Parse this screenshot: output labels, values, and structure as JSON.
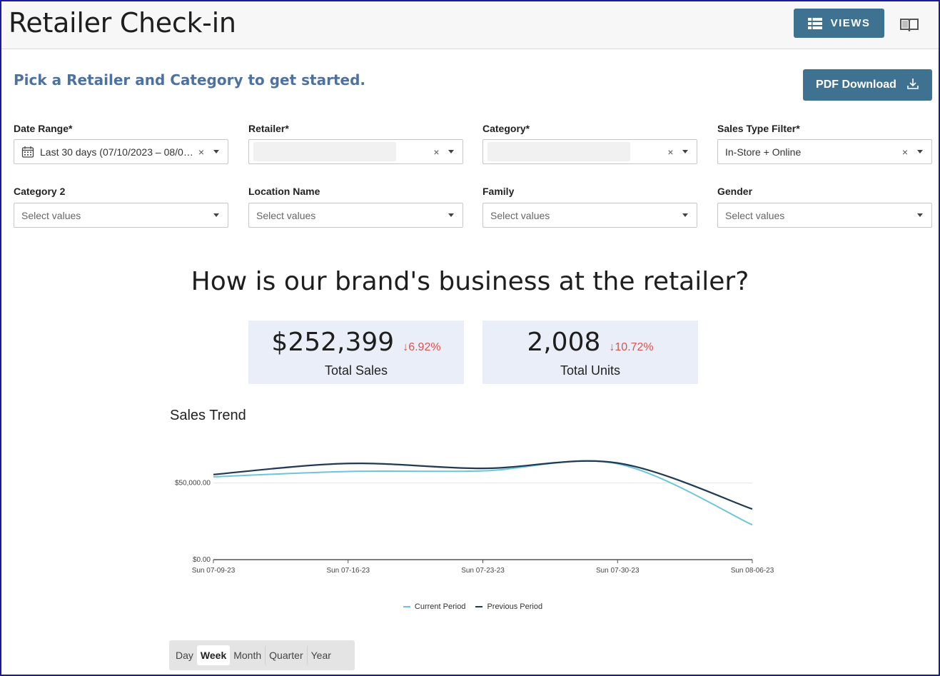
{
  "header": {
    "title": "Retailer Check-in",
    "views_label": "VIEWS",
    "views_icon": "table-list-icon",
    "guide_icon": "book-icon"
  },
  "intro": {
    "subtitle": "Pick a Retailer and Category to get started.",
    "pdf_label": "PDF Download",
    "pdf_icon": "download-icon"
  },
  "filters": {
    "date_range": {
      "label": "Date Range*",
      "value": "Last 30 days (07/10/2023 – 08/0…"
    },
    "retailer": {
      "label": "Retailer*",
      "value": ""
    },
    "category": {
      "label": "Category*",
      "value": ""
    },
    "sales_type": {
      "label": "Sales Type Filter*",
      "value": "In-Store + Online"
    },
    "category2": {
      "label": "Category 2",
      "placeholder": "Select values"
    },
    "location": {
      "label": "Location Name",
      "placeholder": "Select values"
    },
    "family": {
      "label": "Family",
      "placeholder": "Select values"
    },
    "gender": {
      "label": "Gender",
      "placeholder": "Select values"
    },
    "clear_glyph": "×"
  },
  "summary": {
    "question": "How is our brand's business at the retailer?",
    "kpis": [
      {
        "value": "$252,399",
        "change": "↓6.92%",
        "label": "Total Sales"
      },
      {
        "value": "2,008",
        "change": "↓10.72%",
        "label": "Total Units"
      }
    ]
  },
  "chart_data": {
    "type": "line",
    "title": "Sales Trend",
    "x": [
      "Sun 07-09-23",
      "Sun 07-16-23",
      "Sun 07-23-23",
      "Sun 07-30-23",
      "Sun 08-06-23"
    ],
    "y_ticks": [
      "$0.00",
      "$50,000.00"
    ],
    "ylim": [
      0,
      87500
    ],
    "grid": true,
    "legend_position": "bottom",
    "series": [
      {
        "name": "Current Period",
        "color": "#6cc5dc",
        "values": [
          54000,
          57500,
          57900,
          62500,
          22700
        ]
      },
      {
        "name": "Previous Period",
        "color": "#1f3a52",
        "values": [
          55500,
          62700,
          59500,
          63000,
          33000
        ]
      }
    ]
  },
  "granularity": {
    "options": [
      "Day",
      "Week",
      "Month",
      "Quarter",
      "Year"
    ],
    "selected": "Week"
  }
}
